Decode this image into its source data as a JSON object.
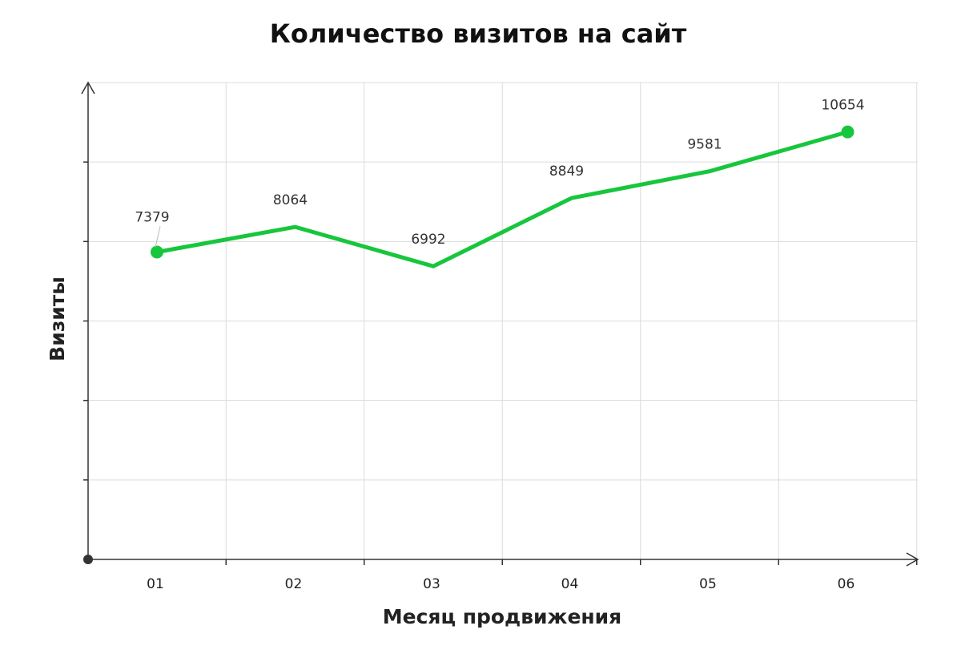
{
  "chart_data": {
    "type": "line",
    "title": "Количество визитов на сайт",
    "xlabel": "Месяц продвижения",
    "ylabel": "Визиты",
    "categories": [
      "01",
      "02",
      "03",
      "04",
      "05",
      "06"
    ],
    "series": [
      {
        "values": [
          7379,
          8064,
          6992,
          8849,
          9581,
          10654
        ],
        "color": "#17c63c"
      }
    ],
    "ylim": [
      -1000,
      12000
    ],
    "grid": true,
    "markers_on": [
      "01",
      "06"
    ]
  }
}
